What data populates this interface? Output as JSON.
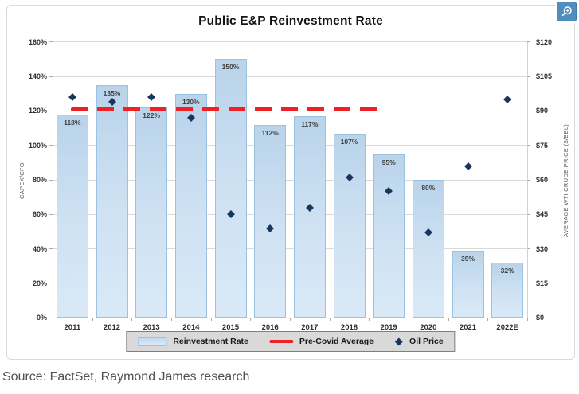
{
  "page": {
    "source_note": "Source: FactSet, Raymond James research"
  },
  "controls": {
    "zoom_button_icon": "magnifier-plus-icon"
  },
  "chart_data": {
    "type": "bar",
    "subtype": "combo-bar-scatter-refline",
    "title": "Public E&P Reinvestment Rate",
    "categories": [
      "2011",
      "2012",
      "2013",
      "2014",
      "2015",
      "2016",
      "2017",
      "2018",
      "2019",
      "2020",
      "2021",
      "2022E"
    ],
    "series": [
      {
        "name": "Reinvestment Rate",
        "type": "bar",
        "axis": "left",
        "unit": "%",
        "values": [
          118,
          135,
          122,
          130,
          150,
          112,
          117,
          107,
          95,
          80,
          39,
          32
        ]
      },
      {
        "name": "Pre-Covid Average",
        "type": "dashed-line",
        "axis": "left",
        "unit": "%",
        "value": 121,
        "span_categories": [
          "2011",
          "2019"
        ]
      },
      {
        "name": "Oil Price",
        "type": "scatter-diamond",
        "axis": "right",
        "unit": "$/BBL",
        "values": [
          96,
          94,
          96,
          87,
          45,
          39,
          48,
          61,
          55,
          37,
          66,
          95
        ]
      }
    ],
    "left_axis": {
      "title": "CAPEX/CFO",
      "min": 0,
      "max": 160,
      "step": 20,
      "format": "percent"
    },
    "right_axis": {
      "title": "AVERAGE WTI CRUDE PRICE ($/BBL)",
      "min": 0,
      "max": 120,
      "step": 20,
      "format": "dollar"
    },
    "grid": "horizontal",
    "legend_position": "bottom",
    "legend": [
      {
        "label": "Reinvestment Rate",
        "swatch": "bar"
      },
      {
        "label": "Pre-Covid Average",
        "swatch": "line"
      },
      {
        "label": "Oil Price",
        "swatch": "diamond"
      }
    ],
    "colors": {
      "bar_fill_top": "#b9d3ea",
      "bar_fill_bottom": "#d9e9f7",
      "bar_border": "#9cc2e2",
      "oil_diamond": "#17365d",
      "precovid_line": "#ee2125",
      "gridline": "#d9d9d9",
      "legend_bg": "#d9d9d9",
      "zoom_button_bg": "#4e8fc0"
    }
  }
}
